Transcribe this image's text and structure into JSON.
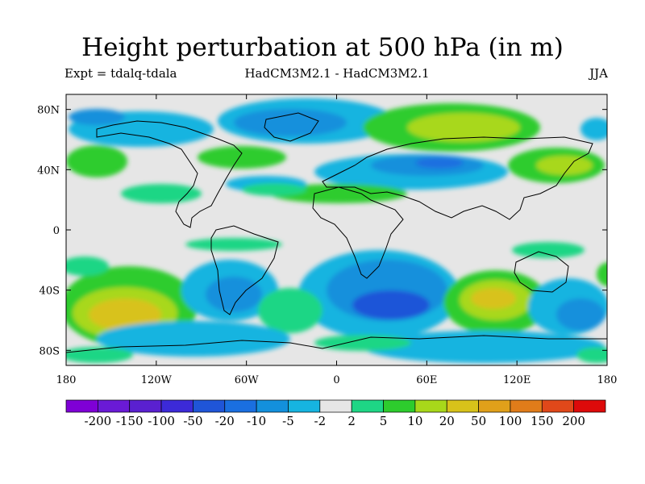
{
  "title": "Height perturbation at 500 hPa (in m)",
  "subtitle_left": "Expt = tdalq-tdala",
  "subtitle_center": "HadCM3M2.1 - HadCM3M2.1",
  "subtitle_right": "JJA",
  "axes": {
    "lat_ticks": [
      {
        "value": 80,
        "label": "80N"
      },
      {
        "value": 40,
        "label": "40N"
      },
      {
        "value": 0,
        "label": "0"
      },
      {
        "value": -40,
        "label": "40S"
      },
      {
        "value": -80,
        "label": "80S"
      }
    ],
    "lon_ticks": [
      {
        "value": -180,
        "label": "180"
      },
      {
        "value": -120,
        "label": "120W"
      },
      {
        "value": -60,
        "label": "60W"
      },
      {
        "value": 0,
        "label": "0"
      },
      {
        "value": 60,
        "label": "60E"
      },
      {
        "value": 120,
        "label": "120E"
      },
      {
        "value": 180,
        "label": "180"
      }
    ],
    "lon_range": [
      -180,
      180
    ],
    "lat_range": [
      -90,
      90
    ]
  },
  "colorbar": {
    "colors": [
      "#7f00d6",
      "#6a1ad6",
      "#5a20d0",
      "#3c2ad8",
      "#1f55d8",
      "#1a6fe0",
      "#1390dc",
      "#16b4e0",
      "#e6e6e6",
      "#1ed685",
      "#2dcc2d",
      "#a8d81a",
      "#d8c21a",
      "#e0a01a",
      "#e07c1a",
      "#e0481a",
      "#dd0a0a"
    ],
    "labels": [
      "-200",
      "-150",
      "-100",
      "-50",
      "-20",
      "-10",
      "-5",
      "-2",
      "2",
      "5",
      "10",
      "20",
      "50",
      "100",
      "150",
      "200"
    ]
  },
  "chart_data": {
    "type": "heatmap",
    "title": "Height perturbation at 500 hPa (in m)",
    "variable_unit": "m",
    "season": "JJA",
    "levels": [
      -200,
      -150,
      -100,
      -50,
      -20,
      -10,
      -5,
      -2,
      2,
      5,
      10,
      20,
      50,
      100,
      150,
      200
    ],
    "notable_features": [
      {
        "region": "South Pacific ~130W 55S",
        "value_range": "20 to 50"
      },
      {
        "region": "South Indian Ocean / Australia ~110E 45S",
        "value_range": "20 to 50"
      },
      {
        "region": "South Atlantic / SW Indian Ocean ~40E 45S",
        "value_range": "-50 to -20"
      },
      {
        "region": "Central Eurasia ~40E 45N",
        "value_range": "-20 to -10"
      },
      {
        "region": "Arctic Canada / Greenland ~30W 80N",
        "value_range": "-20 to -10"
      },
      {
        "region": "Siberia / North Asia ~90E 75N",
        "value_range": "10 to 20"
      },
      {
        "region": "North Pacific ~150E 40N",
        "value_range": "5 to 20"
      },
      {
        "region": "Antarctic ~0 75S",
        "value_range": "-10 to -2"
      }
    ]
  }
}
